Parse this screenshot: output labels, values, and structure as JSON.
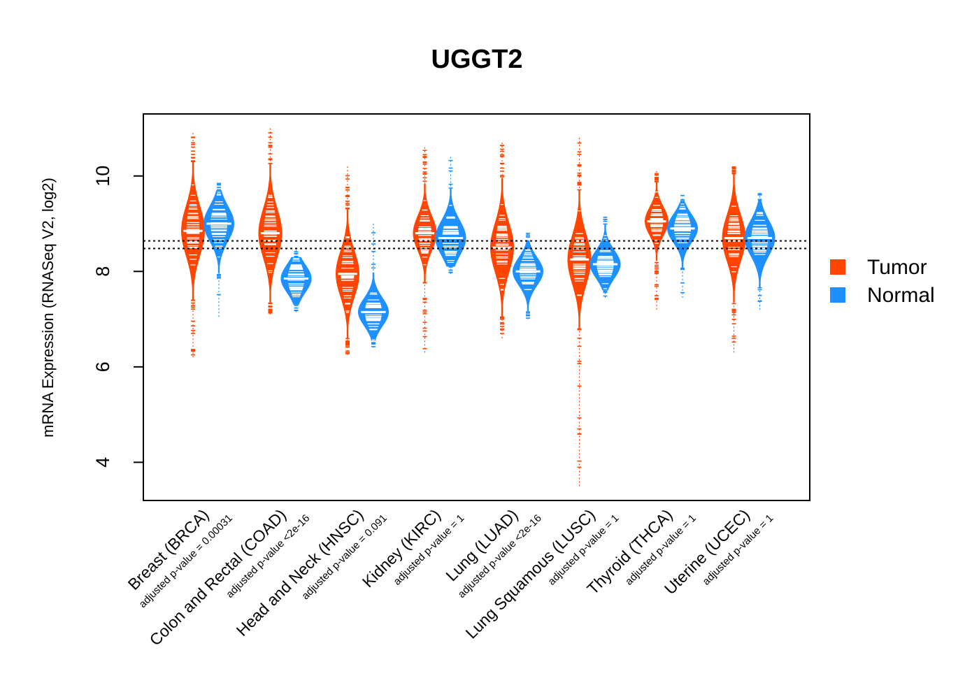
{
  "chart_data": {
    "type": "violin",
    "title": "UGGT2",
    "ylabel": "mRNA Expression (RNASeq V2, log2)",
    "xlabel": "",
    "ylim": [
      3.2,
      11.3
    ],
    "yticks": [
      4,
      6,
      8,
      10
    ],
    "reference_lines": [
      8.48,
      8.64
    ],
    "grid": false,
    "legend_position": "right",
    "series": [
      {
        "name": "Tumor",
        "color": "#FF4500"
      },
      {
        "name": "Normal",
        "color": "#1E90FF"
      }
    ],
    "categories": [
      {
        "label": "Breast (BRCA)",
        "pvalue_label": "adjusted p-value = 0.00031",
        "tumor": {
          "median": 8.85,
          "q1": 8.5,
          "q3": 9.2,
          "min": 6.2,
          "max": 10.9
        },
        "normal": {
          "median": 9.0,
          "q1": 8.75,
          "q3": 9.25,
          "min": 7.05,
          "max": 9.85
        }
      },
      {
        "label": "Colon and Rectal (COAD)",
        "pvalue_label": "adjusted p-value <2e-16",
        "tumor": {
          "median": 8.8,
          "q1": 8.45,
          "q3": 9.15,
          "min": 7.1,
          "max": 11.0
        },
        "normal": {
          "median": 7.85,
          "q1": 7.65,
          "q3": 8.05,
          "min": 7.15,
          "max": 8.45
        }
      },
      {
        "label": "Head and Neck (HNSC)",
        "pvalue_label": "adjusted p-value = 0.091",
        "tumor": {
          "median": 7.95,
          "q1": 7.65,
          "q3": 8.3,
          "min": 6.25,
          "max": 10.2
        },
        "normal": {
          "median": 7.15,
          "q1": 6.95,
          "q3": 7.35,
          "min": 6.4,
          "max": 9.0
        }
      },
      {
        "label": "Kidney (KIRC)",
        "pvalue_label": "adjusted p-value = 1",
        "tumor": {
          "median": 8.8,
          "q1": 8.55,
          "q3": 9.05,
          "min": 6.3,
          "max": 10.6
        },
        "normal": {
          "median": 8.7,
          "q1": 8.45,
          "q3": 8.95,
          "min": 7.95,
          "max": 10.4
        }
      },
      {
        "label": "Lung (LUAD)",
        "pvalue_label": "adjusted p-value <2e-16",
        "tumor": {
          "median": 8.5,
          "q1": 8.15,
          "q3": 8.85,
          "min": 6.6,
          "max": 10.7
        },
        "normal": {
          "median": 8.0,
          "q1": 7.8,
          "q3": 8.2,
          "min": 7.0,
          "max": 8.8
        }
      },
      {
        "label": "Lung Squamous (LUSC)",
        "pvalue_label": "adjusted p-value = 1",
        "tumor": {
          "median": 8.25,
          "q1": 7.85,
          "q3": 8.55,
          "min": 3.5,
          "max": 10.8
        },
        "normal": {
          "median": 8.15,
          "q1": 7.95,
          "q3": 8.35,
          "min": 7.45,
          "max": 9.15
        }
      },
      {
        "label": "Thyroid (THCA)",
        "pvalue_label": "adjusted p-value = 1",
        "tumor": {
          "median": 9.05,
          "q1": 8.85,
          "q3": 9.25,
          "min": 7.2,
          "max": 10.1
        },
        "normal": {
          "median": 8.9,
          "q1": 8.7,
          "q3": 9.1,
          "min": 7.45,
          "max": 9.6
        }
      },
      {
        "label": "Uterine (UCEC)",
        "pvalue_label": "adjusted p-value = 1",
        "tumor": {
          "median": 8.7,
          "q1": 8.35,
          "q3": 9.0,
          "min": 6.3,
          "max": 10.2
        },
        "normal": {
          "median": 8.7,
          "q1": 8.45,
          "q3": 8.95,
          "min": 7.2,
          "max": 9.65
        }
      }
    ]
  }
}
